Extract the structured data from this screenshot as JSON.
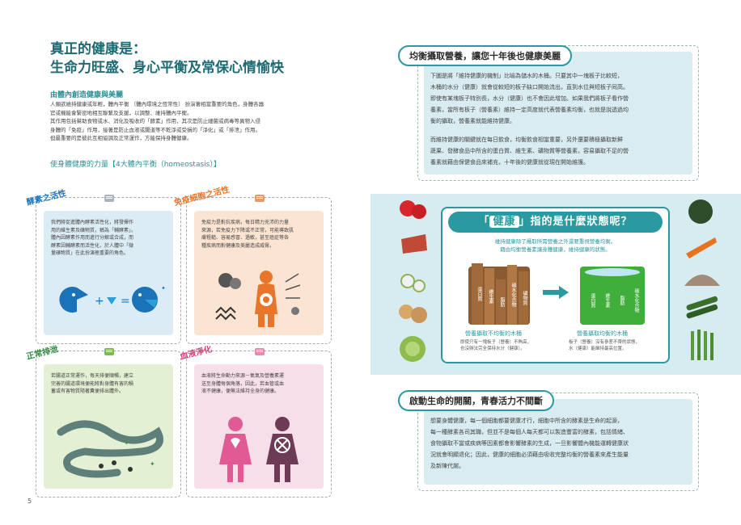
{
  "left": {
    "title_line1": "真正的健康是：",
    "title_line2": "生命力旺盛、身心平衡及常保心情愉快",
    "section_head": "由體內創造健康與美麗",
    "intro_lines": [
      "人類欲維持健康或年輕，體內平衡 （體內環境之恆常性） 扮演著相當重要的角色，身體各器",
      "官或機能會緊密地相互聯繫及支援，以調整、維持體內平衡。",
      "其作用包括幫助食物或水、消化及吸收的「酵素」作用，其次是防止細菌或病毒等異物入侵",
      "身體的「免疫」作用，接著是防止血液或腸道等不乾淨或受損的「淨化」或「排泄」作用。",
      "但最重要的是彼此互相協調及正常運作，方能保持身體健康。"
    ],
    "sub_head": "使身體健康的力量【4大體內平衡（homeostasis）】",
    "page_number": "5",
    "cards": [
      {
        "tag": "酵素之活性",
        "lines": [
          "我們將促進體內酵素活性化，將發揮作",
          "用的維生素及礦物質，稱為「輔酵素」。",
          "體內因酵素作用而進行分解或合成，而",
          "酵素因輔酵素而活性化，於人體中「微",
          "量礦物質」在此扮演極重要的角色。"
        ]
      },
      {
        "tag": "免疫細胞之活性",
        "lines": [
          "免疫力是對抗疾病，每日精力充沛的力量",
          "來源，若免疫力下降或不正常，可能導致肌",
          "膚粗糙、容易感冒、過敏，甚至癌症等各",
          "種疾病而對健康及美麗造成威脅。"
        ]
      },
      {
        "tag": "正常排泄",
        "lines": [
          "若腸道正常運作，每天排便順暢，建立",
          "完善的腸道環境便能將對身體有害的積",
          "蓄或有害物質隨著糞便排出體外。"
        ]
      },
      {
        "tag": "血液淨化",
        "lines": [
          "血液將生命動力來源－氧氣及營養素運",
          "送至身體每個角落，因此，若血管或血",
          "液不健康，便無法維持全身的健康。"
        ]
      }
    ]
  },
  "right": {
    "box1": {
      "heading": "均衡攝取營養，讓您十年後也健康美麗",
      "para1_lines": [
        "下圖是將「維持健康的機制」比喻為儲水的木桶。只要其中一塊板子比較短，",
        "木桶的水分（健康）就會從較短的板子缺口開始流出，直到水位與短板子同高。",
        "即使有某塊板子特別長，水分（健康）也不會因此增加。如果我們將板子看作營",
        "養素，當所有板子（營養素）維持一定高度就代表營養素均衡，也就是說透過均",
        "衡的攝取，營養素就能維持健康。"
      ],
      "para2_lines": [
        "而維持健康的關鍵就在每日飲食，均衡飲食相當重要，另外還要積極攝取新鮮",
        "蔬果、發酵食品中所含的蛋白質、維生素、礦物質等營養素，容易攝取不足的營",
        "養素就藉由保健食品來補充，十年後的健康就從現在開始維護。"
      ]
    },
    "question": {
      "title_pre": "「",
      "title_word": "健康",
      "title_post": "」指的是什麼狀態呢？",
      "sub_line1": "維持健康除了攝取所需營養之外還要重視營養均衡。",
      "sub_line2": "藉由均衡營養素讓身體健康，維持健康的狀態。",
      "left_caption": "營養攝取不均衡的木桶",
      "left_note1": "即使只有一塊板子（營養）不夠高，",
      "left_note2": "也沒辦法完全保持水分（健康）。",
      "right_caption": "營養攝取均衡的木桶",
      "right_note1": "板子（營養）沒有參差不齊的狀態，",
      "right_note2": "水（健康）能維持最高位置。",
      "staves_left": [
        "蛋白質",
        "維生素",
        "脂肪",
        "碳水化合物",
        "礦物質"
      ],
      "staves_right": [
        "蛋白質",
        "維生素",
        "脂肪",
        "碳水化合物"
      ]
    },
    "box2": {
      "heading": "啟動生命的開關，青春活力不間斷",
      "para_lines": [
        "想要身體健康，每一個細胞都要健康才行，細胞中所含的酵素是生命的起源，",
        "每一種酵素各司其職，但並不是每個人每天都可以製造豐富的酵素，包括情緒、",
        "食物攝取不當或疾病等因素都會影響酵素的生成，一旦影響體內機能運轉健康狀",
        "況就會明顯退化；因此，健康的細胞必須藉由吸收完整均衡的營養素來產生能量",
        "及新陳代謝。"
      ]
    }
  },
  "colors": {
    "teal": "#2a9aa0",
    "card_blue": "#dcecf5",
    "card_orange": "#fbe4d2",
    "card_green": "#e4f0d4",
    "card_pink": "#f6dfe8"
  }
}
